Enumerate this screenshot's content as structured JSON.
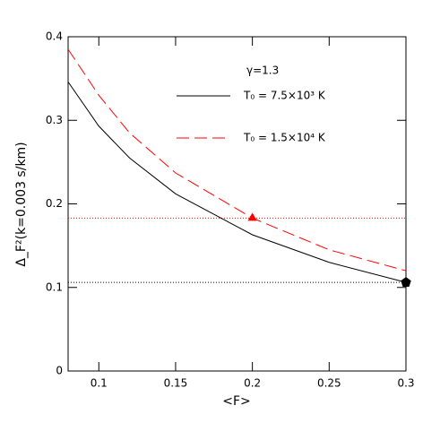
{
  "chart_data": {
    "type": "line",
    "xlabel": "<F>",
    "ylabel": "Δ_F²(k=0.003 s/km)",
    "annotation": "γ=1.3",
    "x": [
      0.08,
      0.1,
      0.12,
      0.15,
      0.2,
      0.25,
      0.3
    ],
    "series": [
      {
        "name": "T₀ = 7.5×10³ K",
        "color": "#000000",
        "dash": "solid",
        "values": [
          0.346,
          0.293,
          0.255,
          0.212,
          0.163,
          0.13,
          0.106
        ]
      },
      {
        "name": "T₀ = 1.5×10⁴ K",
        "color": "#ff0000",
        "dash": "dashed",
        "values": [
          0.385,
          0.33,
          0.285,
          0.237,
          0.183,
          0.145,
          0.12
        ]
      }
    ],
    "hlines": [
      {
        "value": 0.183,
        "color": "#ff0000"
      },
      {
        "value": 0.106,
        "color": "#000000"
      }
    ],
    "markers": [
      {
        "x": 0.2,
        "y": 0.183,
        "color": "#ff0000",
        "shape": "triangle"
      },
      {
        "x": 0.3,
        "y": 0.106,
        "color": "#000000",
        "shape": "pentagon"
      }
    ],
    "xlim": [
      0.08,
      0.3
    ],
    "ylim": [
      0,
      0.4
    ],
    "xticks": [
      0.1,
      0.15,
      0.2,
      0.25,
      0.3
    ],
    "yticks": [
      0,
      0.1,
      0.2,
      0.3,
      0.4
    ]
  }
}
